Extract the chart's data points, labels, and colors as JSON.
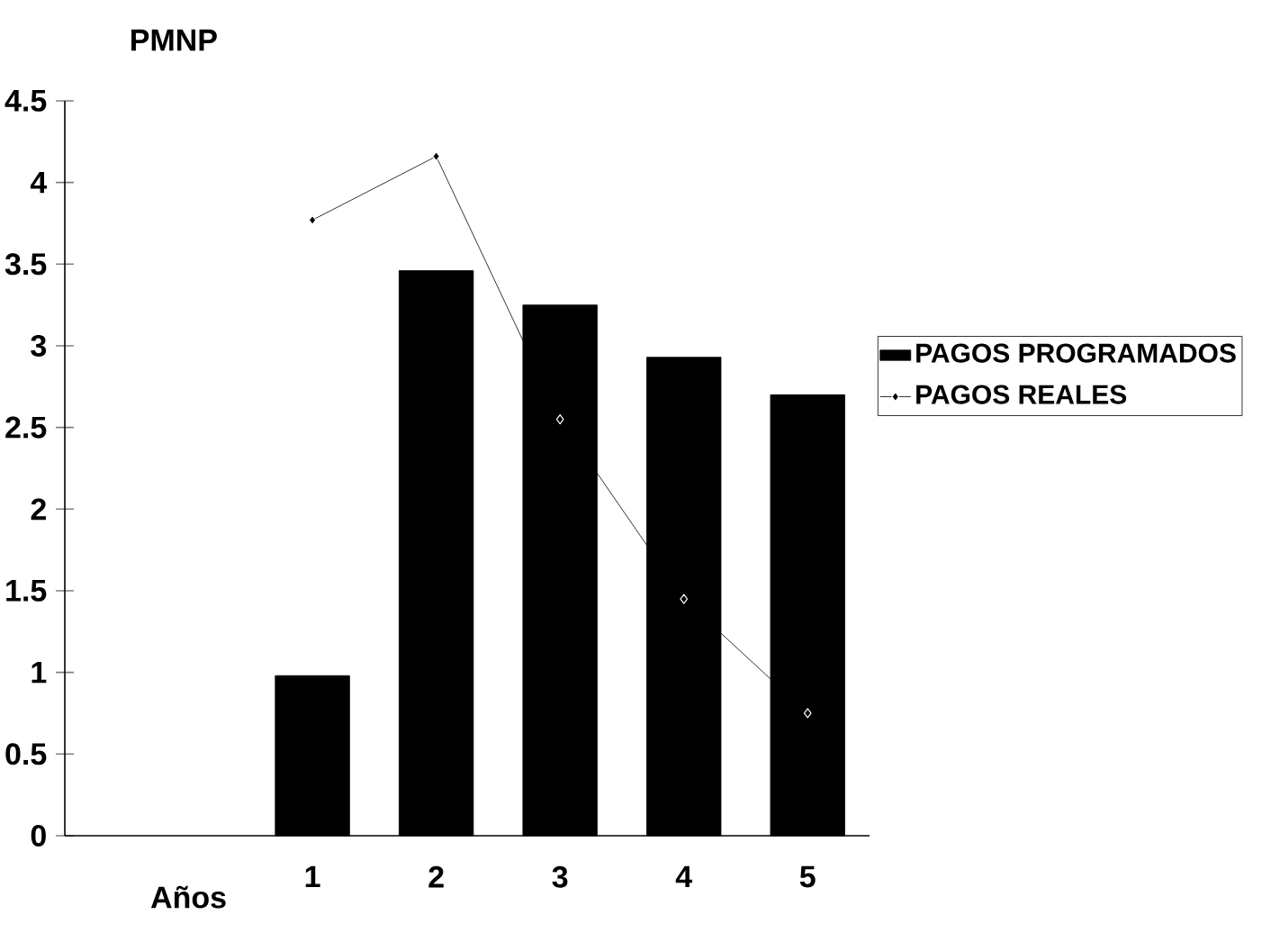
{
  "chart_data": {
    "type": "bar",
    "ylabel": "PMNP",
    "xlabel": "Años",
    "categories": [
      null,
      "1",
      "2",
      "3",
      "4",
      "5"
    ],
    "series": [
      {
        "name": "PAGOS PROGRAMADOS",
        "color": "#000000",
        "values": [
          null,
          0.98,
          3.46,
          3.25,
          2.93,
          2.7
        ]
      },
      {
        "name": "PAGOS REALES",
        "type": "line",
        "color": "#000000",
        "marker": "diamond",
        "values": [
          null,
          3.77,
          4.16,
          2.55,
          1.45,
          0.75
        ]
      }
    ],
    "ylim": [
      0,
      4.5
    ],
    "yticks": [
      0,
      0.5,
      1,
      1.5,
      2,
      2.5,
      3,
      3.5,
      4,
      4.5
    ],
    "legend": "right",
    "grid": false
  }
}
